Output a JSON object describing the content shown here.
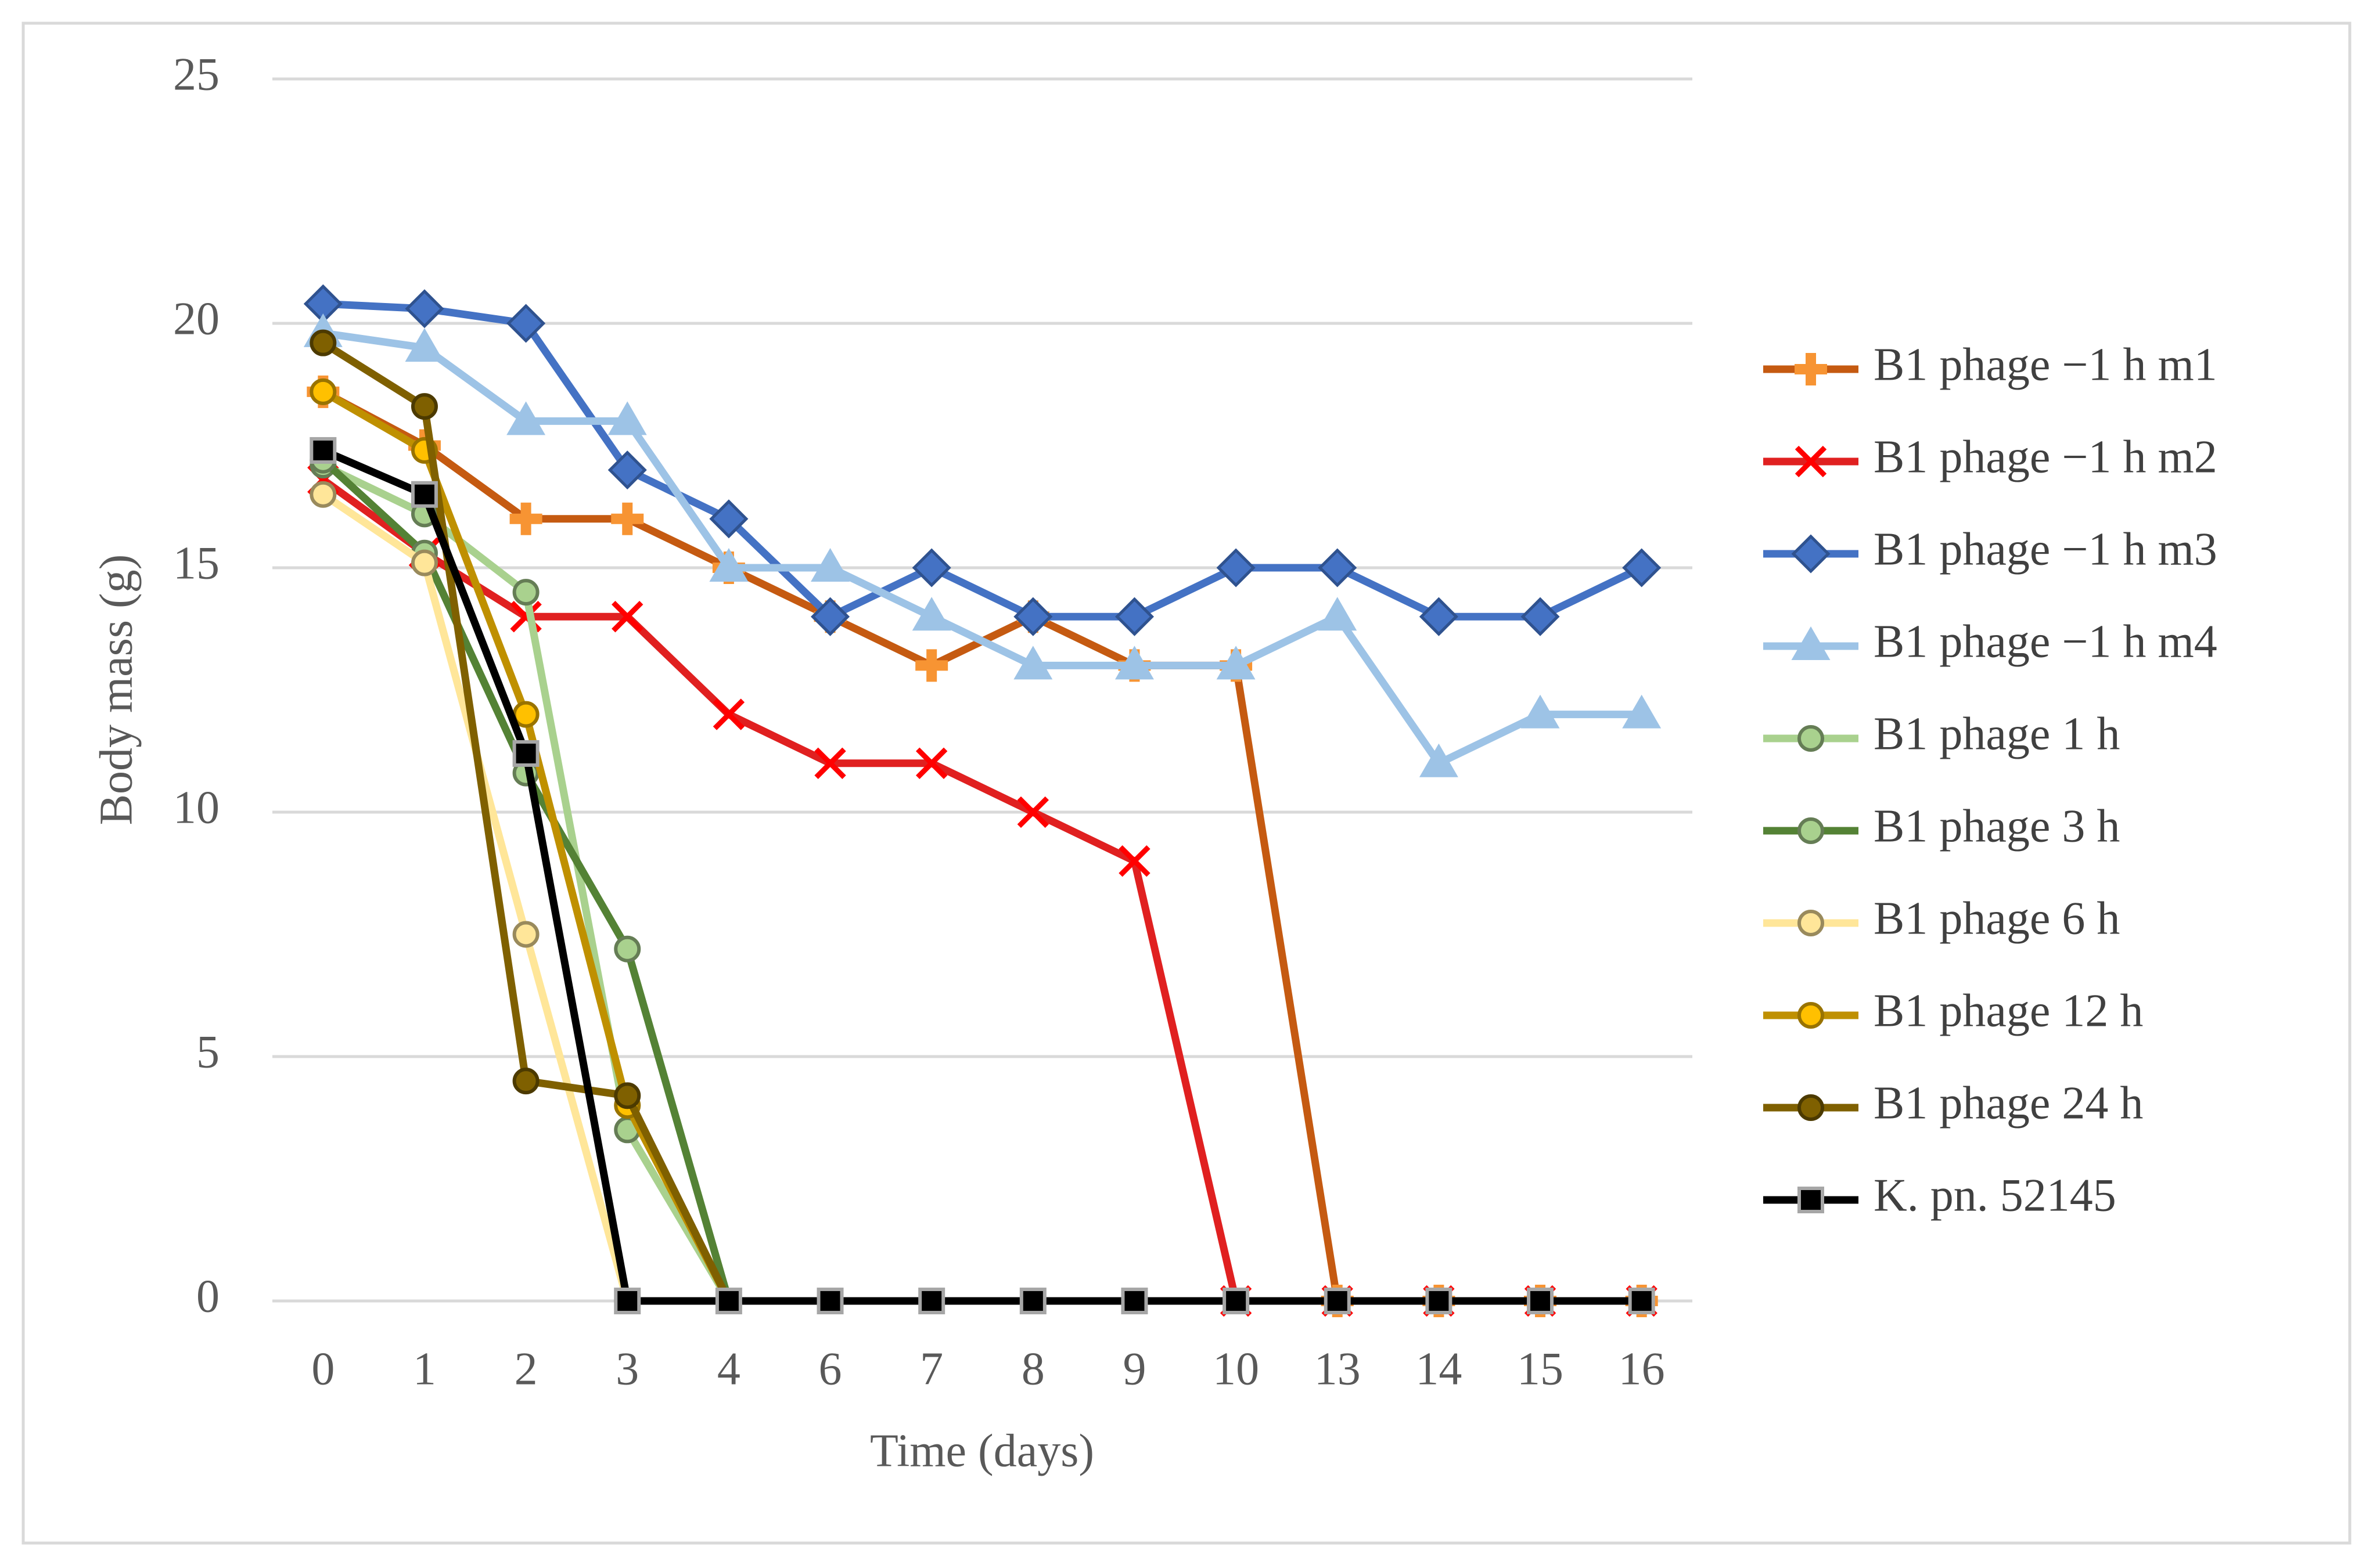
{
  "chart_data": {
    "type": "line",
    "xlabel": "Time (days)",
    "ylabel": "Body mass (g)",
    "categories": [
      "0",
      "1",
      "2",
      "3",
      "4",
      "6",
      "7",
      "8",
      "9",
      "10",
      "13",
      "14",
      "15",
      "16"
    ],
    "ylim": [
      0,
      25
    ],
    "yticks": [
      0,
      5,
      10,
      15,
      20,
      25
    ],
    "grid": true,
    "legend": "right",
    "series": [
      {
        "name": "B1 phage −1 h m1",
        "color": "#c55a11",
        "marker": "plus",
        "marker_color": "#f79433",
        "values": [
          18.6,
          17.5,
          16,
          16,
          15,
          14,
          13,
          14,
          13,
          13,
          0,
          0,
          0,
          0
        ]
      },
      {
        "name": "B1 phage −1 h m2",
        "color": "#e02020",
        "marker": "x",
        "marker_color": "#ff0000",
        "values": [
          16.8,
          15.3,
          14,
          14,
          12,
          11,
          11,
          10,
          9,
          0,
          0,
          0,
          0,
          0
        ]
      },
      {
        "name": "B1 phage −1 h m3",
        "color": "#4472c4",
        "marker": "diamond",
        "marker_color": "#4472c4",
        "values": [
          20.4,
          20.3,
          20,
          17,
          16,
          14,
          15,
          14,
          14,
          15,
          15,
          14,
          14,
          15
        ]
      },
      {
        "name": "B1 phage −1 h m4",
        "color": "#9dc3e6",
        "marker": "triangle",
        "marker_color": "#9dc3e6",
        "values": [
          19.8,
          19.5,
          18,
          18,
          15,
          15,
          14,
          13,
          13,
          13,
          14,
          11,
          12,
          12
        ]
      },
      {
        "name": "B1 phage 1 h",
        "color": "#a9d18e",
        "marker": "circle",
        "marker_color": "#a9d18e",
        "values": [
          17.1,
          16.1,
          14.5,
          3.5,
          0,
          null,
          null,
          null,
          null,
          null,
          null,
          null,
          null,
          null
        ]
      },
      {
        "name": "B1 phage 3 h",
        "color": "#548235",
        "marker": "circle",
        "marker_color": "#a9d18e",
        "values": [
          17.2,
          15.3,
          10.8,
          7.2,
          0,
          null,
          null,
          null,
          null,
          null,
          null,
          null,
          null,
          null
        ]
      },
      {
        "name": "B1 phage 6 h",
        "color": "#ffe699",
        "marker": "circle",
        "marker_color": "#ffe699",
        "values": [
          16.5,
          15.1,
          7.5,
          0,
          null,
          null,
          null,
          null,
          null,
          null,
          null,
          null,
          null,
          null
        ]
      },
      {
        "name": "B1 phage 12 h",
        "color": "#bf9000",
        "marker": "circle",
        "marker_color": "#ffc000",
        "values": [
          18.6,
          17.4,
          12,
          4,
          0,
          null,
          null,
          null,
          null,
          null,
          null,
          null,
          null,
          null
        ]
      },
      {
        "name": "B1 phage 24 h",
        "color": "#7f6000",
        "marker": "circle",
        "marker_color": "#7f6000",
        "values": [
          19.6,
          18.3,
          4.5,
          4.2,
          0,
          null,
          null,
          null,
          null,
          null,
          null,
          null,
          null,
          null
        ]
      },
      {
        "name": "K. pn. 52145",
        "color": "#000000",
        "marker": "square",
        "marker_color": "#000000",
        "values": [
          17.4,
          16.5,
          11.2,
          0,
          0,
          0,
          0,
          0,
          0,
          0,
          0,
          0,
          0,
          0
        ]
      }
    ]
  }
}
